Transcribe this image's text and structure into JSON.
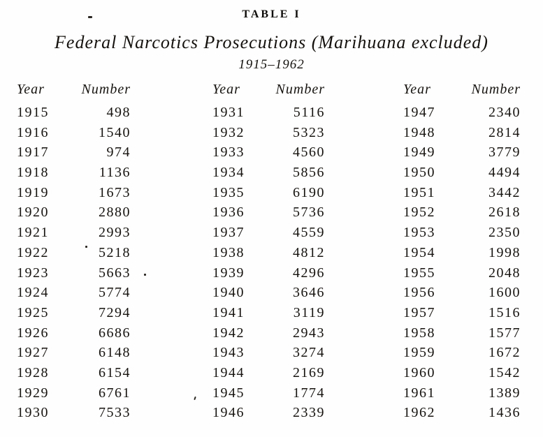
{
  "page": {
    "table_label": "TABLE I",
    "title": "Federal Narcotics Prosecutions (Marihuana excluded)",
    "subtitle": "1915–1962"
  },
  "table": {
    "column_headers": [
      "Year",
      "Number"
    ],
    "groups": [
      {
        "rows": [
          [
            "1915",
            "498"
          ],
          [
            "1916",
            "1540"
          ],
          [
            "1917",
            "974"
          ],
          [
            "1918",
            "1136"
          ],
          [
            "1919",
            "1673"
          ],
          [
            "1920",
            "2880"
          ],
          [
            "1921",
            "2993"
          ],
          [
            "1922",
            "5218"
          ],
          [
            "1923",
            "5663"
          ],
          [
            "1924",
            "5774"
          ],
          [
            "1925",
            "7294"
          ],
          [
            "1926",
            "6686"
          ],
          [
            "1927",
            "6148"
          ],
          [
            "1928",
            "6154"
          ],
          [
            "1929",
            "6761"
          ],
          [
            "1930",
            "7533"
          ]
        ]
      },
      {
        "rows": [
          [
            "1931",
            "5116"
          ],
          [
            "1932",
            "5323"
          ],
          [
            "1933",
            "4560"
          ],
          [
            "1934",
            "5856"
          ],
          [
            "1935",
            "6190"
          ],
          [
            "1936",
            "5736"
          ],
          [
            "1937",
            "4559"
          ],
          [
            "1938",
            "4812"
          ],
          [
            "1939",
            "4296"
          ],
          [
            "1940",
            "3646"
          ],
          [
            "1941",
            "3119"
          ],
          [
            "1942",
            "2943"
          ],
          [
            "1943",
            "3274"
          ],
          [
            "1944",
            "2169"
          ],
          [
            "1945",
            "1774"
          ],
          [
            "1946",
            "2339"
          ]
        ]
      },
      {
        "rows": [
          [
            "1947",
            "2340"
          ],
          [
            "1948",
            "2814"
          ],
          [
            "1949",
            "3779"
          ],
          [
            "1950",
            "4494"
          ],
          [
            "1951",
            "3442"
          ],
          [
            "1952",
            "2618"
          ],
          [
            "1953",
            "2350"
          ],
          [
            "1954",
            "1998"
          ],
          [
            "1955",
            "2048"
          ],
          [
            "1956",
            "1600"
          ],
          [
            "1957",
            "1516"
          ],
          [
            "1958",
            "1577"
          ],
          [
            "1959",
            "1672"
          ],
          [
            "1960",
            "1542"
          ],
          [
            "1961",
            "1389"
          ],
          [
            "1962",
            "1436"
          ]
        ]
      }
    ]
  },
  "ink_color": "#161310",
  "background_color": "#fefefe"
}
